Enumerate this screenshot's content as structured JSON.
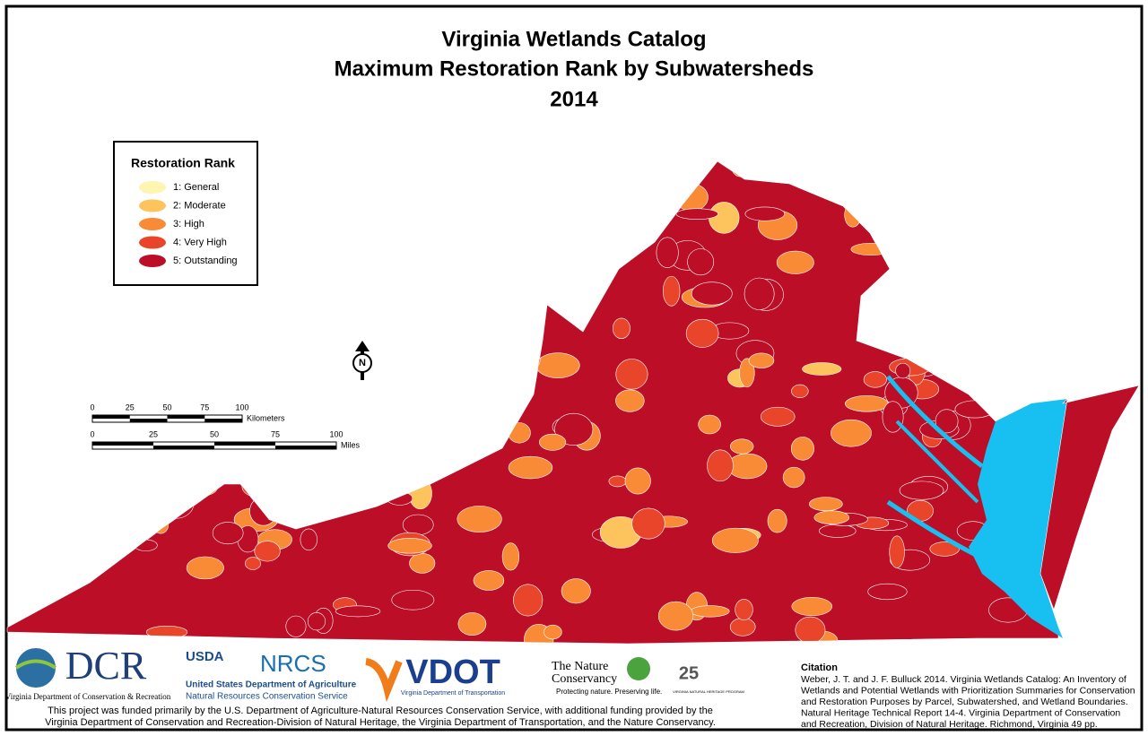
{
  "header": {
    "title_lines": [
      "Virginia Wetlands Catalog",
      "Maximum Restoration Rank by Subwatersheds",
      "2014"
    ]
  },
  "legend": {
    "title": "Restoration Rank",
    "items": [
      {
        "label": "1: General",
        "color": "#fff4b0"
      },
      {
        "label": "2: Moderate",
        "color": "#fdc35c"
      },
      {
        "label": "3: High",
        "color": "#f98a36"
      },
      {
        "label": "4: Very High",
        "color": "#e9452a"
      },
      {
        "label": "5: Outstanding",
        "color": "#bc0e27"
      }
    ]
  },
  "water_color": "#17c0f0",
  "north_arrow": {
    "label": "N"
  },
  "scale": {
    "km": {
      "ticks": [
        0,
        25,
        50,
        75,
        100
      ],
      "unit": "Kilometers"
    },
    "miles": {
      "ticks": [
        0,
        25,
        50,
        75,
        100
      ],
      "unit": "Miles"
    }
  },
  "logos": {
    "dcr": {
      "name": "DCR",
      "caption": "Virginia Department of Conservation & Recreation"
    },
    "usda": {
      "name": "USDA",
      "nrcs": "NRCS",
      "line1": "United States Department of Agriculture",
      "line2": "Natural Resources Conservation Service"
    },
    "vdot": {
      "name": "VDOT",
      "caption": "Virginia Department of Transportation"
    },
    "tnc": {
      "line1": "The Nature",
      "line2": "Conservancy",
      "tagline": "Protecting nature. Preserving life."
    },
    "vnhp": {
      "number": "25",
      "caption": "VIRGINIA NATURAL HERITAGE PROGRAM"
    }
  },
  "funding": [
    "This project was funded primarily by the U.S. Department of Agriculture-Natural Resources Conservation Service, with additional funding provided by the",
    "Virginia Department of Conservation and Recreation-Division of Natural Heritage, the Virginia Department of Transportation, and the Nature Conservancy."
  ],
  "citation": {
    "heading": "Citation",
    "lines": [
      "Weber, J. T. and J. F. Bulluck 2014. Virginia Wetlands Catalog: An Inventory of",
      "Wetlands and Potential Wetlands with Prioritization Summaries for Conservation",
      "and Restoration Purposes by Parcel, Subwatershed, and Wetland Boundaries.",
      "Natural Heritage Technical Report 14-4. Virginia Department of Conservation",
      "and Recreation, Division of Natural Heritage. Richmond, Virginia 49 pp."
    ]
  }
}
